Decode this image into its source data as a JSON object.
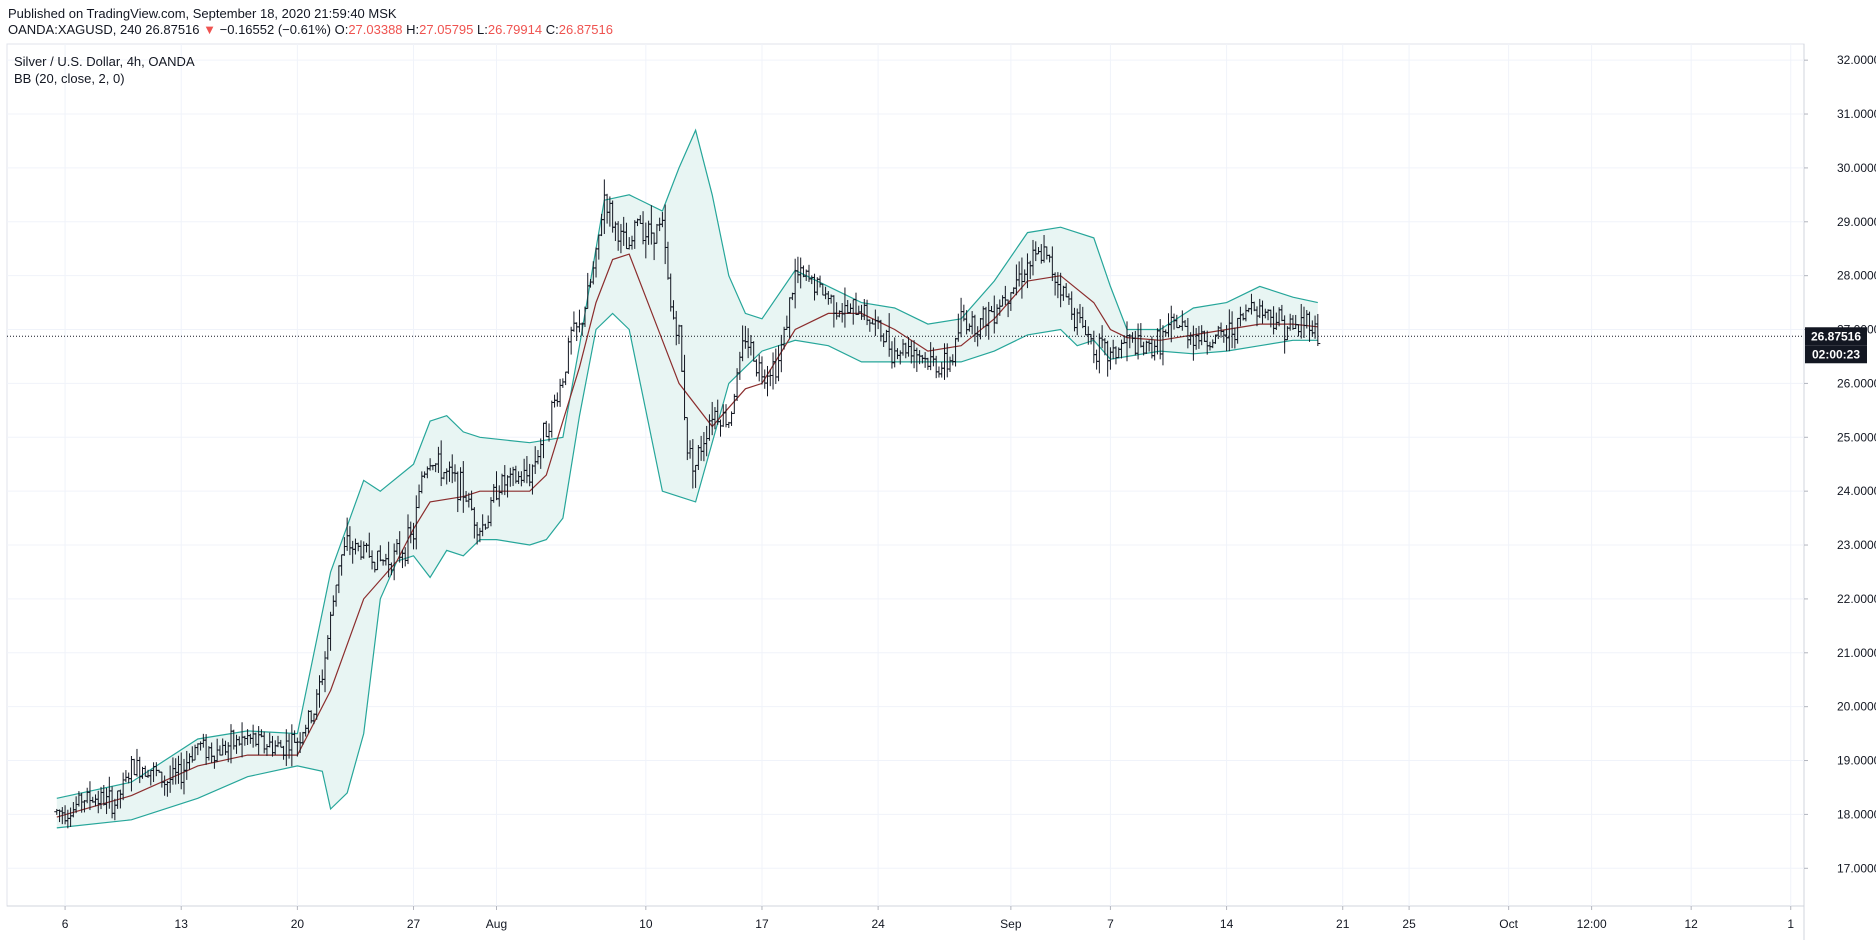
{
  "header": {
    "published": "Published on TradingView.com, September 18, 2020 21:59:40 MSK",
    "symbol": "OANDA:XAGUSD, 240",
    "last": "26.87516",
    "change_arrow": "▼",
    "change": "−0.16552 (−0.61%)",
    "o_label": "O:",
    "o_value": "27.03388",
    "h_label": "H:",
    "h_value": "27.05795",
    "l_label": "L:",
    "l_value": "26.79914",
    "c_label": "C:",
    "c_value": "26.87516"
  },
  "legend": {
    "title": "Silver / U.S. Dollar, 4h, OANDA",
    "indicator": "BB (20, close, 2, 0)"
  },
  "price_label": "26.87516",
  "countdown_label": "02:00:23",
  "colors": {
    "candle": "#131722",
    "band": "#26a69a",
    "basis": "#8b2d2d",
    "band_fill": "#e8f5f3",
    "grid": "#f0f3fa",
    "negative": "#ef5350"
  },
  "chart_data": {
    "type": "ohlc",
    "title": "Silver / U.S. Dollar, 4h, OANDA",
    "y_ticks": [
      "17.00000",
      "18.00000",
      "19.00000",
      "20.00000",
      "21.00000",
      "22.00000",
      "23.00000",
      "24.00000",
      "25.00000",
      "26.00000",
      "27.00000",
      "28.00000",
      "29.00000",
      "30.00000",
      "31.00000",
      "32.00000"
    ],
    "ylim": [
      16.3,
      32.3
    ],
    "x_ticks": [
      "6",
      "13",
      "20",
      "27",
      "Aug",
      "10",
      "17",
      "24",
      "Sep",
      "7",
      "14",
      "21",
      "25",
      "Oct",
      "12:00",
      "12",
      "1"
    ],
    "x_tick_days": [
      6,
      13,
      20,
      27,
      32,
      41,
      48,
      55,
      63,
      69,
      76,
      83,
      87,
      93,
      98,
      104,
      110
    ],
    "x_axis_start": "2020-07-06",
    "grid": true,
    "last_price": 26.87516,
    "series": [
      {
        "name": "price",
        "points": [
          [
            5.5,
            18.05
          ],
          [
            6.5,
            18.1
          ],
          [
            7,
            18.3
          ],
          [
            8,
            18.3
          ],
          [
            9,
            18.2
          ],
          [
            9.5,
            18.5
          ],
          [
            10,
            18.85
          ],
          [
            11,
            18.9
          ],
          [
            12,
            18.6
          ],
          [
            13,
            18.75
          ],
          [
            13.5,
            19.1
          ],
          [
            14,
            19.3
          ],
          [
            15,
            19.15
          ],
          [
            16,
            19.3
          ],
          [
            17,
            19.4
          ],
          [
            18,
            19.3
          ],
          [
            19,
            19.25
          ],
          [
            20,
            19.4
          ],
          [
            21,
            19.9
          ],
          [
            21.5,
            20.6
          ],
          [
            22,
            21.6
          ],
          [
            22.5,
            22.7
          ],
          [
            23,
            23.0
          ],
          [
            24,
            22.9
          ],
          [
            25,
            22.7
          ],
          [
            26,
            22.8
          ],
          [
            27,
            23.2
          ],
          [
            27.5,
            24.3
          ],
          [
            28,
            24.6
          ],
          [
            29,
            24.3
          ],
          [
            29.5,
            24.2
          ],
          [
            30,
            24.0
          ],
          [
            31,
            23.3
          ],
          [
            31.5,
            23.5
          ],
          [
            32,
            24.1
          ],
          [
            33,
            24.2
          ],
          [
            34,
            24.3
          ],
          [
            35,
            25.2
          ],
          [
            36,
            26.1
          ],
          [
            36.5,
            26.9
          ],
          [
            37,
            27.0
          ],
          [
            38,
            28.3
          ],
          [
            38.5,
            29.5
          ],
          [
            39,
            29.0
          ],
          [
            40,
            28.4
          ],
          [
            40.5,
            29.1
          ],
          [
            41,
            28.8
          ],
          [
            42,
            28.9
          ],
          [
            42.5,
            27.4
          ],
          [
            43,
            26.9
          ],
          [
            43.5,
            24.8
          ],
          [
            44,
            24.5
          ],
          [
            45,
            25.5
          ],
          [
            46,
            25.3
          ],
          [
            47,
            26.9
          ],
          [
            47.5,
            26.5
          ],
          [
            48,
            26.2
          ],
          [
            49,
            26.4
          ],
          [
            49.5,
            27.2
          ],
          [
            50,
            28.0
          ],
          [
            51,
            27.9
          ],
          [
            52,
            27.6
          ],
          [
            53,
            27.3
          ],
          [
            54,
            27.4
          ],
          [
            55,
            27.0
          ],
          [
            56,
            26.6
          ],
          [
            57,
            26.7
          ],
          [
            58,
            26.4
          ],
          [
            59,
            26.3
          ],
          [
            59.5,
            26.5
          ],
          [
            60,
            27.2
          ],
          [
            61,
            27.1
          ],
          [
            62,
            27.4
          ],
          [
            63,
            27.8
          ],
          [
            64,
            28.2
          ],
          [
            65,
            28.4
          ],
          [
            66,
            27.8
          ],
          [
            67,
            27.2
          ],
          [
            67.5,
            27.0
          ],
          [
            68,
            26.7
          ],
          [
            69,
            26.5
          ],
          [
            70,
            26.8
          ],
          [
            71,
            26.6
          ],
          [
            72,
            26.8
          ],
          [
            73,
            27.1
          ],
          [
            74,
            26.9
          ],
          [
            75,
            26.8
          ],
          [
            76,
            26.9
          ],
          [
            77,
            27.2
          ],
          [
            77.5,
            27.5
          ],
          [
            78,
            27.4
          ],
          [
            79,
            27.2
          ],
          [
            80,
            27.0
          ],
          [
            81,
            27.2
          ],
          [
            81.5,
            26.88
          ]
        ]
      },
      {
        "name": "BB upper",
        "points": [
          [
            5.5,
            18.3
          ],
          [
            10,
            18.6
          ],
          [
            14,
            19.4
          ],
          [
            17,
            19.55
          ],
          [
            20,
            19.5
          ],
          [
            22,
            22.5
          ],
          [
            24,
            24.2
          ],
          [
            25,
            24.0
          ],
          [
            27,
            24.5
          ],
          [
            28,
            25.3
          ],
          [
            29,
            25.4
          ],
          [
            30,
            25.1
          ],
          [
            31,
            25.0
          ],
          [
            34,
            24.9
          ],
          [
            36,
            25.0
          ],
          [
            37,
            26.7
          ],
          [
            38,
            28.5
          ],
          [
            38.5,
            29.4
          ],
          [
            40,
            29.5
          ],
          [
            42,
            29.2
          ],
          [
            43,
            30.0
          ],
          [
            44,
            30.7
          ],
          [
            45,
            29.5
          ],
          [
            46,
            28.0
          ],
          [
            47,
            27.3
          ],
          [
            48,
            27.2
          ],
          [
            50,
            28.1
          ],
          [
            52,
            27.8
          ],
          [
            54,
            27.5
          ],
          [
            56,
            27.4
          ],
          [
            58,
            27.1
          ],
          [
            60,
            27.2
          ],
          [
            62,
            27.9
          ],
          [
            64,
            28.8
          ],
          [
            66,
            28.9
          ],
          [
            68,
            28.7
          ],
          [
            69,
            27.8
          ],
          [
            70,
            27.0
          ],
          [
            72,
            27.0
          ],
          [
            74,
            27.4
          ],
          [
            76,
            27.5
          ],
          [
            78,
            27.8
          ],
          [
            80,
            27.6
          ],
          [
            81.5,
            27.5
          ]
        ]
      },
      {
        "name": "BB basis",
        "points": [
          [
            5.5,
            17.95
          ],
          [
            10,
            18.35
          ],
          [
            14,
            18.9
          ],
          [
            17,
            19.1
          ],
          [
            20,
            19.1
          ],
          [
            22,
            20.3
          ],
          [
            24,
            22.0
          ],
          [
            26,
            22.7
          ],
          [
            27,
            23.3
          ],
          [
            28,
            23.8
          ],
          [
            30,
            23.9
          ],
          [
            31,
            24.0
          ],
          [
            34,
            24.0
          ],
          [
            35,
            24.3
          ],
          [
            36,
            25.3
          ],
          [
            37,
            26.3
          ],
          [
            38,
            27.5
          ],
          [
            39,
            28.3
          ],
          [
            40,
            28.4
          ],
          [
            41,
            27.6
          ],
          [
            42,
            26.8
          ],
          [
            43,
            26.0
          ],
          [
            45,
            25.2
          ],
          [
            47,
            25.9
          ],
          [
            48,
            26.0
          ],
          [
            50,
            27.0
          ],
          [
            52,
            27.3
          ],
          [
            54,
            27.3
          ],
          [
            56,
            27.0
          ],
          [
            58,
            26.6
          ],
          [
            60,
            26.7
          ],
          [
            62,
            27.2
          ],
          [
            64,
            27.9
          ],
          [
            66,
            28.0
          ],
          [
            68,
            27.5
          ],
          [
            69,
            27.0
          ],
          [
            70,
            26.85
          ],
          [
            72,
            26.8
          ],
          [
            74,
            26.9
          ],
          [
            76,
            27.0
          ],
          [
            78,
            27.1
          ],
          [
            80,
            27.1
          ],
          [
            81.5,
            27.05
          ]
        ]
      },
      {
        "name": "BB lower",
        "points": [
          [
            5.5,
            17.75
          ],
          [
            10,
            17.9
          ],
          [
            14,
            18.3
          ],
          [
            17,
            18.7
          ],
          [
            20,
            18.9
          ],
          [
            21.5,
            18.8
          ],
          [
            22,
            18.1
          ],
          [
            23,
            18.4
          ],
          [
            24,
            19.5
          ],
          [
            25,
            22.0
          ],
          [
            26,
            22.7
          ],
          [
            27,
            22.8
          ],
          [
            28,
            22.4
          ],
          [
            29,
            22.9
          ],
          [
            30,
            22.8
          ],
          [
            31,
            23.1
          ],
          [
            32,
            23.1
          ],
          [
            34,
            23.0
          ],
          [
            35,
            23.1
          ],
          [
            36,
            23.5
          ],
          [
            37,
            25.4
          ],
          [
            38,
            27.0
          ],
          [
            39,
            27.3
          ],
          [
            40,
            27.0
          ],
          [
            41,
            25.5
          ],
          [
            42,
            24.0
          ],
          [
            43,
            23.9
          ],
          [
            44,
            23.8
          ],
          [
            45,
            24.9
          ],
          [
            46,
            26.0
          ],
          [
            47,
            26.3
          ],
          [
            48,
            26.6
          ],
          [
            50,
            26.8
          ],
          [
            52,
            26.7
          ],
          [
            54,
            26.4
          ],
          [
            56,
            26.4
          ],
          [
            58,
            26.4
          ],
          [
            60,
            26.4
          ],
          [
            62,
            26.6
          ],
          [
            64,
            26.9
          ],
          [
            66,
            27.0
          ],
          [
            67,
            26.7
          ],
          [
            68,
            26.8
          ],
          [
            69,
            26.45
          ],
          [
            70,
            26.5
          ],
          [
            72,
            26.6
          ],
          [
            74,
            26.55
          ],
          [
            76,
            26.6
          ],
          [
            78,
            26.7
          ],
          [
            80,
            26.8
          ],
          [
            81.5,
            26.8
          ]
        ]
      }
    ]
  }
}
